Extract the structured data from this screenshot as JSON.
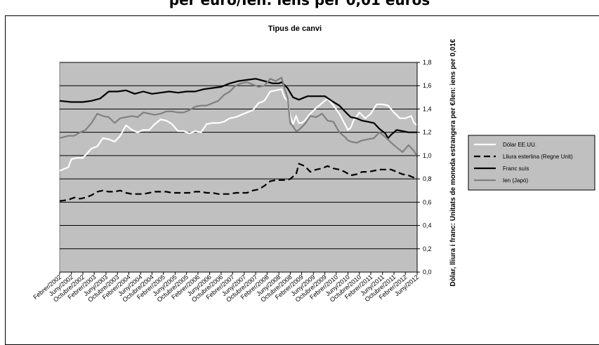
{
  "page": {
    "title": "per euro/Ien: iens per 0,01 euros"
  },
  "chart_data": {
    "type": "line",
    "title": "Tipus de canvi",
    "ylabel": "Dòlar, lliura i franc: Unitats de moneda estrangera per €/Ien: iens per 0,01€",
    "xlabel": "",
    "ylim": [
      0,
      1.8
    ],
    "yticks": [
      "0,0",
      "0,2",
      "0,4",
      "0,6",
      "0,8",
      "1,0",
      "1,2",
      "1,4",
      "1,6",
      "1,8"
    ],
    "grid": true,
    "legend": "right",
    "x_tick_labels": [
      "Febrer/2002",
      "Juny/2002",
      "Octubre/2002",
      "Febrer/2003",
      "Juny/2003",
      "Octubre/2003",
      "Febrer/2004",
      "Juny/2004",
      "Octubre/2004",
      "Febrer/2005",
      "Juny/2005",
      "Octubre/2005",
      "Febrer/2006",
      "Juny/2006",
      "Octubre/2006",
      "Febrer/2007",
      "Juny/2007",
      "Octubre/2007",
      "Febrer/2008",
      "Juny/2008",
      "Octubre/2008",
      "Febrer/2009",
      "Juny/2009",
      "Octubre/2009",
      "Febrer/2010",
      "Juny/2010",
      "Octubre/2010",
      "Febrer/2011",
      "Juny/2011",
      "Octubre/2011",
      "Febrer/2012",
      "Juny/2012"
    ],
    "x_tick_values": [
      2002.08,
      2002.42,
      2002.75,
      2003.08,
      2003.42,
      2003.75,
      2004.08,
      2004.42,
      2004.75,
      2005.08,
      2005.42,
      2005.75,
      2006.08,
      2006.42,
      2006.75,
      2007.08,
      2007.42,
      2007.75,
      2008.08,
      2008.42,
      2008.75,
      2009.08,
      2009.42,
      2009.75,
      2010.08,
      2010.42,
      2010.75,
      2011.08,
      2011.42,
      2011.75,
      2012.08,
      2012.42
    ],
    "xlim": [
      2002.08,
      2012.42
    ],
    "series": [
      {
        "name": "Dòlar EE.UU.",
        "color": "#ffffff",
        "dash": "solid",
        "x": [
          2002.08,
          2002.33,
          2002.42,
          2002.58,
          2002.75,
          2003.0,
          2003.17,
          2003.33,
          2003.5,
          2003.67,
          2003.83,
          2004.0,
          2004.17,
          2004.33,
          2004.5,
          2004.67,
          2004.83,
          2005.0,
          2005.17,
          2005.33,
          2005.5,
          2005.67,
          2005.83,
          2006.0,
          2006.17,
          2006.33,
          2006.5,
          2006.67,
          2006.83,
          2007.0,
          2007.17,
          2007.33,
          2007.5,
          2007.67,
          2007.83,
          2008.0,
          2008.17,
          2008.33,
          2008.5,
          2008.58,
          2008.67,
          2008.75,
          2008.83,
          2008.92,
          2009.0,
          2009.08,
          2009.17,
          2009.33,
          2009.5,
          2009.67,
          2009.83,
          2010.0,
          2010.17,
          2010.33,
          2010.42,
          2010.5,
          2010.58,
          2010.75,
          2010.92,
          2011.08,
          2011.25,
          2011.42,
          2011.58,
          2011.75,
          2011.92,
          2012.08,
          2012.25,
          2012.33,
          2012.42
        ],
        "y": [
          0.87,
          0.9,
          0.97,
          0.98,
          0.98,
          1.06,
          1.08,
          1.15,
          1.14,
          1.12,
          1.17,
          1.26,
          1.22,
          1.2,
          1.22,
          1.22,
          1.27,
          1.31,
          1.3,
          1.27,
          1.21,
          1.21,
          1.19,
          1.21,
          1.2,
          1.27,
          1.28,
          1.28,
          1.29,
          1.32,
          1.33,
          1.35,
          1.37,
          1.39,
          1.45,
          1.47,
          1.55,
          1.56,
          1.57,
          1.5,
          1.47,
          1.34,
          1.27,
          1.34,
          1.28,
          1.28,
          1.3,
          1.36,
          1.41,
          1.45,
          1.49,
          1.43,
          1.36,
          1.27,
          1.22,
          1.24,
          1.3,
          1.37,
          1.32,
          1.36,
          1.44,
          1.44,
          1.43,
          1.37,
          1.32,
          1.32,
          1.34,
          1.28,
          1.26
        ]
      },
      {
        "name": "Lliura esterlina (Regne Unit)",
        "color": "#000000",
        "dash": "long",
        "x": [
          2002.08,
          2002.33,
          2002.5,
          2002.67,
          2002.83,
          2003.0,
          2003.17,
          2003.33,
          2003.5,
          2003.67,
          2003.83,
          2004.0,
          2004.17,
          2004.33,
          2004.5,
          2004.67,
          2004.83,
          2005.0,
          2005.17,
          2005.33,
          2005.5,
          2005.67,
          2005.83,
          2006.0,
          2006.17,
          2006.33,
          2006.5,
          2006.67,
          2006.83,
          2007.0,
          2007.17,
          2007.33,
          2007.5,
          2007.67,
          2007.83,
          2008.0,
          2008.17,
          2008.33,
          2008.5,
          2008.67,
          2008.75,
          2008.83,
          2008.92,
          2009.0,
          2009.17,
          2009.33,
          2009.5,
          2009.67,
          2009.83,
          2010.0,
          2010.17,
          2010.33,
          2010.5,
          2010.67,
          2010.83,
          2011.0,
          2011.17,
          2011.33,
          2011.5,
          2011.67,
          2011.83,
          2012.0,
          2012.17,
          2012.33,
          2012.42
        ],
        "y": [
          0.61,
          0.62,
          0.64,
          0.63,
          0.64,
          0.66,
          0.69,
          0.7,
          0.69,
          0.69,
          0.7,
          0.68,
          0.67,
          0.67,
          0.67,
          0.68,
          0.69,
          0.69,
          0.69,
          0.68,
          0.68,
          0.68,
          0.68,
          0.69,
          0.69,
          0.68,
          0.68,
          0.67,
          0.67,
          0.67,
          0.68,
          0.68,
          0.68,
          0.7,
          0.71,
          0.74,
          0.78,
          0.79,
          0.79,
          0.79,
          0.8,
          0.82,
          0.84,
          0.93,
          0.91,
          0.86,
          0.88,
          0.89,
          0.91,
          0.89,
          0.88,
          0.86,
          0.83,
          0.84,
          0.86,
          0.86,
          0.87,
          0.88,
          0.88,
          0.88,
          0.86,
          0.84,
          0.83,
          0.81,
          0.81
        ]
      },
      {
        "name": "Franc suís",
        "color": "#000000",
        "dash": "solid",
        "x": [
          2002.08,
          2002.42,
          2002.75,
          2003.0,
          2003.25,
          2003.5,
          2003.75,
          2004.0,
          2004.25,
          2004.5,
          2004.75,
          2005.0,
          2005.25,
          2005.5,
          2005.75,
          2006.0,
          2006.25,
          2006.5,
          2006.75,
          2007.0,
          2007.25,
          2007.5,
          2007.75,
          2008.0,
          2008.25,
          2008.42,
          2008.5,
          2008.67,
          2008.83,
          2009.0,
          2009.25,
          2009.5,
          2009.75,
          2010.0,
          2010.17,
          2010.33,
          2010.5,
          2010.67,
          2010.83,
          2011.0,
          2011.17,
          2011.33,
          2011.5,
          2011.58,
          2011.67,
          2011.83,
          2012.0,
          2012.17,
          2012.42
        ],
        "y": [
          1.47,
          1.46,
          1.46,
          1.47,
          1.49,
          1.55,
          1.55,
          1.56,
          1.53,
          1.55,
          1.53,
          1.54,
          1.55,
          1.54,
          1.55,
          1.55,
          1.57,
          1.58,
          1.59,
          1.62,
          1.64,
          1.65,
          1.66,
          1.64,
          1.62,
          1.62,
          1.63,
          1.58,
          1.5,
          1.48,
          1.51,
          1.51,
          1.51,
          1.46,
          1.43,
          1.38,
          1.33,
          1.32,
          1.3,
          1.29,
          1.28,
          1.23,
          1.19,
          1.15,
          1.18,
          1.22,
          1.21,
          1.2,
          1.2
        ]
      },
      {
        "name": "Ien (Japó)",
        "color": "#808080",
        "dash": "solid",
        "x": [
          2002.08,
          2002.33,
          2002.5,
          2002.67,
          2002.83,
          2003.0,
          2003.17,
          2003.33,
          2003.5,
          2003.67,
          2003.83,
          2004.0,
          2004.17,
          2004.33,
          2004.5,
          2004.67,
          2004.83,
          2005.0,
          2005.17,
          2005.33,
          2005.5,
          2005.67,
          2005.83,
          2006.0,
          2006.17,
          2006.33,
          2006.5,
          2006.67,
          2006.83,
          2007.0,
          2007.17,
          2007.33,
          2007.5,
          2007.67,
          2007.83,
          2008.0,
          2008.17,
          2008.33,
          2008.5,
          2008.58,
          2008.67,
          2008.75,
          2008.83,
          2008.92,
          2009.0,
          2009.17,
          2009.33,
          2009.5,
          2009.67,
          2009.83,
          2010.0,
          2010.17,
          2010.33,
          2010.42,
          2010.5,
          2010.67,
          2010.83,
          2011.0,
          2011.17,
          2011.33,
          2011.5,
          2011.67,
          2011.83,
          2012.0,
          2012.17,
          2012.33,
          2012.42
        ],
        "y": [
          1.15,
          1.17,
          1.17,
          1.2,
          1.22,
          1.28,
          1.36,
          1.34,
          1.33,
          1.28,
          1.32,
          1.33,
          1.34,
          1.33,
          1.37,
          1.36,
          1.35,
          1.36,
          1.38,
          1.38,
          1.37,
          1.37,
          1.39,
          1.42,
          1.43,
          1.43,
          1.45,
          1.47,
          1.52,
          1.55,
          1.6,
          1.62,
          1.63,
          1.61,
          1.59,
          1.6,
          1.66,
          1.64,
          1.67,
          1.58,
          1.5,
          1.28,
          1.25,
          1.21,
          1.22,
          1.27,
          1.34,
          1.33,
          1.36,
          1.3,
          1.29,
          1.2,
          1.16,
          1.13,
          1.12,
          1.11,
          1.13,
          1.14,
          1.15,
          1.2,
          1.16,
          1.11,
          1.07,
          1.03,
          1.09,
          1.04,
          0.99
        ]
      }
    ]
  }
}
